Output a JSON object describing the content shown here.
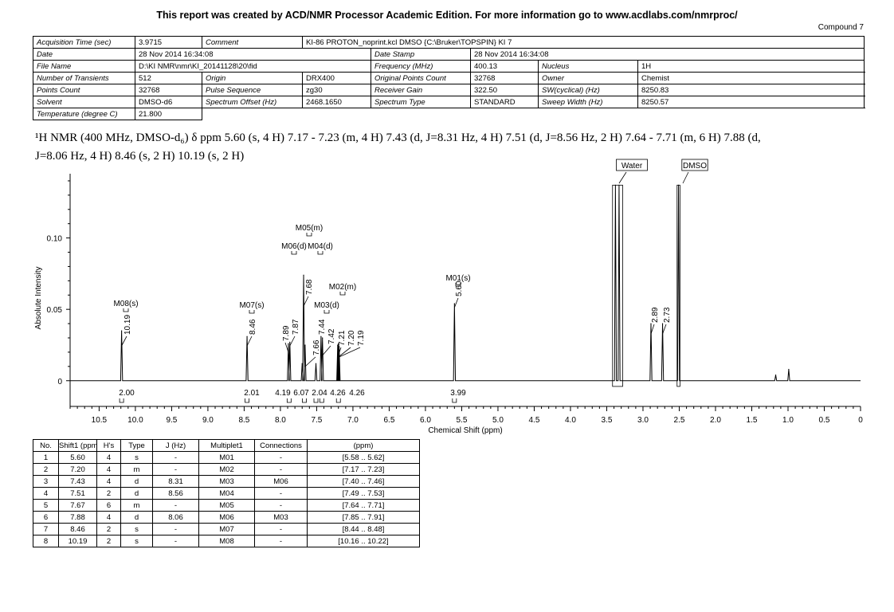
{
  "banner": "This report was created by ACD/NMR Processor Academic Edition. For more information go to www.acdlabs.com/nmrproc/",
  "compound": "Compound 7",
  "acq": {
    "rows": [
      [
        {
          "k": "Acquisition Time (sec)",
          "v": "3.9715"
        },
        {
          "k": "Comment",
          "v": "KI-86 PROTON_noprint.kcl DMSO {C:\\Bruker\\TOPSPIN} KI 7"
        }
      ],
      [
        {
          "k": "Date",
          "v": "28 Nov 2014 16:34:08"
        },
        {
          "k": "Date Stamp",
          "v": "28 Nov 2014 16:34:08"
        }
      ],
      [
        {
          "k": "File Name",
          "v": "D:\\KI NMR\\nmr\\KI_20141128\\20\\fid"
        },
        {
          "k": "Frequency (MHz)",
          "v": "400.13"
        },
        {
          "k": "Nucleus",
          "v": "1H"
        }
      ],
      [
        {
          "k": "Number of Transients",
          "v": "512"
        },
        {
          "k": "Origin",
          "v": "DRX400"
        },
        {
          "k": "Original Points Count",
          "v": "32768"
        },
        {
          "k": "Owner",
          "v": "Chemist"
        }
      ],
      [
        {
          "k": "Points Count",
          "v": "32768"
        },
        {
          "k": "Pulse Sequence",
          "v": "zg30"
        },
        {
          "k": "Receiver Gain",
          "v": "322.50"
        },
        {
          "k": "SW(cyclical) (Hz)",
          "v": "8250.83"
        }
      ],
      [
        {
          "k": "Solvent",
          "v": "DMSO-d6"
        },
        {
          "k": "Spectrum Offset (Hz)",
          "v": "2468.1650"
        },
        {
          "k": "Spectrum Type",
          "v": "STANDARD"
        },
        {
          "k": "Sweep Width (Hz)",
          "v": "8250.57"
        }
      ],
      [
        {
          "k": "Temperature (degree C)",
          "v": "21.800"
        }
      ]
    ]
  },
  "nmr_text": {
    "line1": "¹H NMR (400 MHz, DMSO-d₆) δ ppm 5.60 (s, 4 H) 7.17 - 7.23 (m, 4 H) 7.43 (d, J=8.31 Hz, 4 H) 7.51 (d, J=8.56 Hz, 2 H) 7.64 - 7.71 (m, 6 H) 7.88 (d,",
    "line2": "J=8.06 Hz, 4 H) 8.46 (s, 2 H) 10.19 (s, 2 H)"
  },
  "chart_data": {
    "type": "line",
    "title": "",
    "xlabel": "Chemical Shift (ppm)",
    "ylabel": "Absolute Intensity",
    "xlim": [
      10.9,
      0
    ],
    "ylim": [
      -0.018,
      0.145
    ],
    "x_ticks": [
      "10.5",
      "10.0",
      "9.5",
      "9.0",
      "8.5",
      "8.0",
      "7.5",
      "7.0",
      "6.5",
      "6.0",
      "5.5",
      "5.0",
      "4.5",
      "4.0",
      "3.5",
      "3.0",
      "2.5",
      "2.0",
      "1.5",
      "1.0",
      "0.5",
      "0"
    ],
    "y_ticks": [
      {
        "v": 0,
        "label": "0"
      },
      {
        "v": 0.05,
        "label": "0.05"
      },
      {
        "v": 0.1,
        "label": "0.10"
      }
    ],
    "peaks": [
      {
        "ppm": 10.19,
        "h": 0.035
      },
      {
        "ppm": 8.46,
        "h": 0.031
      },
      {
        "ppm": 7.89,
        "h": 0.026
      },
      {
        "ppm": 7.87,
        "h": 0.027
      },
      {
        "ppm": 7.7,
        "h": 0.012
      },
      {
        "ppm": 7.68,
        "h": 0.074
      },
      {
        "ppm": 7.66,
        "h": 0.025
      },
      {
        "ppm": 7.51,
        "h": 0.012
      },
      {
        "ppm": 7.44,
        "h": 0.031
      },
      {
        "ppm": 7.42,
        "h": 0.03
      },
      {
        "ppm": 7.21,
        "h": 0.025
      },
      {
        "ppm": 7.2,
        "h": 0.026
      },
      {
        "ppm": 7.19,
        "h": 0.024
      },
      {
        "ppm": 5.6,
        "h": 0.054
      },
      {
        "ppm": 3.38,
        "h": 0.137
      },
      {
        "ppm": 3.33,
        "h": 0.137
      },
      {
        "ppm": 2.89,
        "h": 0.04
      },
      {
        "ppm": 2.73,
        "h": 0.04
      },
      {
        "ppm": 2.51,
        "h": 0.137
      },
      {
        "ppm": 1.17,
        "h": 0.004
      },
      {
        "ppm": 0.99,
        "h": 0.008
      }
    ],
    "peak_labels": [
      {
        "ppm": 10.19,
        "text": "10.19"
      },
      {
        "ppm": 8.46,
        "text": "8.46"
      },
      {
        "ppm": 7.89,
        "text": "7.89"
      },
      {
        "ppm": 7.87,
        "text": "7.87"
      },
      {
        "ppm": 7.66,
        "text": "7.66"
      },
      {
        "ppm": 7.68,
        "text": "7.68"
      },
      {
        "ppm": 7.44,
        "text": "7.44"
      },
      {
        "ppm": 7.42,
        "text": "7.42"
      },
      {
        "ppm": 7.21,
        "text": "7.21"
      },
      {
        "ppm": 7.2,
        "text": "7.20"
      },
      {
        "ppm": 7.19,
        "text": "7.19"
      },
      {
        "ppm": 5.6,
        "text": "5.60"
      },
      {
        "ppm": 2.89,
        "text": "2.89"
      },
      {
        "ppm": 2.73,
        "text": "2.73"
      }
    ],
    "multiplet_labels": [
      {
        "ppm": 10.19,
        "text": "M08(s)"
      },
      {
        "ppm": 8.46,
        "text": "M07(s)"
      },
      {
        "ppm": 7.67,
        "text": "M05(m)"
      },
      {
        "ppm": 7.88,
        "text": "M06(d)"
      },
      {
        "ppm": 7.51,
        "text": "M04(d)"
      },
      {
        "ppm": 7.43,
        "text": "M03(d)"
      },
      {
        "ppm": 7.2,
        "text": "M02(m)"
      },
      {
        "ppm": 5.6,
        "text": "M01(s)"
      }
    ],
    "solvent_labels": [
      {
        "ppm": 3.35,
        "text": "Water"
      },
      {
        "ppm": 2.51,
        "text": "DMSO"
      }
    ],
    "integrals": [
      {
        "ppm": 10.19,
        "value": "2.00"
      },
      {
        "ppm": 8.46,
        "value": "2.01"
      },
      {
        "ppm": 7.88,
        "value": "4.19"
      },
      {
        "ppm": 7.67,
        "value": "6.07"
      },
      {
        "ppm": 7.51,
        "value": "2.04"
      },
      {
        "ppm": 7.43,
        "value": "4.26"
      },
      {
        "ppm": 7.2,
        "value": "4.26"
      },
      {
        "ppm": 5.6,
        "value": "3.99"
      }
    ]
  },
  "peak_table": {
    "headers": [
      "No.",
      "Shift1 (ppm)",
      "H's",
      "Type",
      "J (Hz)",
      "Multiplet1",
      "Connections",
      "(ppm)"
    ],
    "rows": [
      [
        "1",
        "5.60",
        "4",
        "s",
        "-",
        "M01",
        "-",
        "[5.58 .. 5.62]"
      ],
      [
        "2",
        "7.20",
        "4",
        "m",
        "-",
        "M02",
        "-",
        "[7.17 .. 7.23]"
      ],
      [
        "3",
        "7.43",
        "4",
        "d",
        "8.31",
        "M03",
        "M06",
        "[7.40 .. 7.46]"
      ],
      [
        "4",
        "7.51",
        "2",
        "d",
        "8.56",
        "M04",
        "-",
        "[7.49 .. 7.53]"
      ],
      [
        "5",
        "7.67",
        "6",
        "m",
        "-",
        "M05",
        "-",
        "[7.64 .. 7.71]"
      ],
      [
        "6",
        "7.88",
        "4",
        "d",
        "8.06",
        "M06",
        "M03",
        "[7.85 .. 7.91]"
      ],
      [
        "7",
        "8.46",
        "2",
        "s",
        "-",
        "M07",
        "-",
        "[8.44 .. 8.48]"
      ],
      [
        "8",
        "10.19",
        "2",
        "s",
        "-",
        "M08",
        "-",
        "[10.16 .. 10.22]"
      ]
    ]
  }
}
